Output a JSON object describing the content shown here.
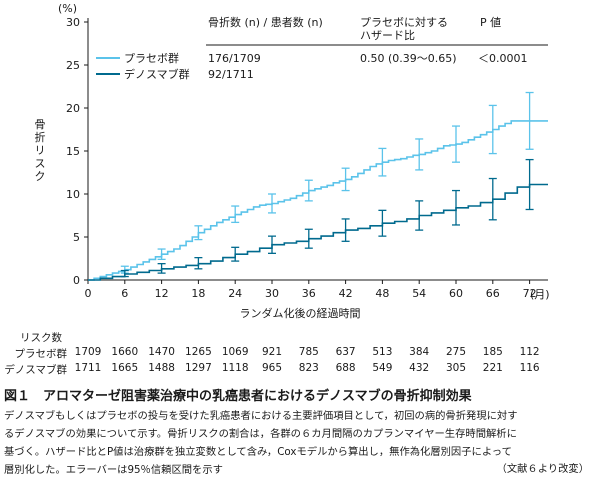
{
  "chart_data": {
    "type": "line",
    "y_unit": "(%)",
    "ylabel": "骨折リスク",
    "xlabel": "ランダム化後の経過時間",
    "x_unit": "(月)",
    "xlim": [
      0,
      75
    ],
    "ylim": [
      0,
      30
    ],
    "x_ticks": [
      0,
      6,
      12,
      18,
      24,
      30,
      36,
      42,
      48,
      54,
      60,
      66,
      72
    ],
    "y_ticks": [
      0,
      5,
      10,
      15,
      20,
      25,
      30
    ],
    "grid": false,
    "table_header": {
      "fractures": "骨折数 (n) / 患者数 (n)",
      "hr": "プラセボに対する\nハザード比",
      "p": "P 値"
    },
    "hr_value": "0.50 (0.39～0.65)",
    "p_value": "＜0.0001",
    "colors": {
      "placebo": "#5bc3ea",
      "denosumab": "#006a8e"
    },
    "series": [
      {
        "name": "プラセボ群",
        "fractures": "176/1709",
        "steps": [
          [
            0,
            0
          ],
          [
            1,
            0.2
          ],
          [
            2,
            0.4
          ],
          [
            3,
            0.6
          ],
          [
            4,
            0.8
          ],
          [
            5,
            1.0
          ],
          [
            6,
            1.2
          ],
          [
            7,
            1.5
          ],
          [
            8,
            1.8
          ],
          [
            9,
            2.1
          ],
          [
            10,
            2.4
          ],
          [
            11,
            2.7
          ],
          [
            12,
            3.0
          ],
          [
            13,
            3.3
          ],
          [
            14,
            3.6
          ],
          [
            15,
            4.0
          ],
          [
            16,
            4.5
          ],
          [
            17,
            5.0
          ],
          [
            18,
            5.5
          ],
          [
            19,
            5.9
          ],
          [
            20,
            6.3
          ],
          [
            21,
            6.7
          ],
          [
            22,
            7.0
          ],
          [
            23,
            7.3
          ],
          [
            24,
            7.6
          ],
          [
            25,
            7.9
          ],
          [
            26,
            8.2
          ],
          [
            27,
            8.5
          ],
          [
            28,
            8.7
          ],
          [
            29,
            8.8
          ],
          [
            30,
            8.9
          ],
          [
            31,
            9.1
          ],
          [
            32,
            9.3
          ],
          [
            33,
            9.5
          ],
          [
            34,
            9.8
          ],
          [
            35,
            10.1
          ],
          [
            36,
            10.4
          ],
          [
            37,
            10.6
          ],
          [
            38,
            10.8
          ],
          [
            39,
            11.0
          ],
          [
            40,
            11.3
          ],
          [
            41,
            11.5
          ],
          [
            42,
            11.7
          ],
          [
            43,
            12.0
          ],
          [
            44,
            12.4
          ],
          [
            45,
            12.8
          ],
          [
            46,
            13.2
          ],
          [
            47,
            13.5
          ],
          [
            48,
            13.7
          ],
          [
            49,
            13.9
          ],
          [
            50,
            14.0
          ],
          [
            51,
            14.1
          ],
          [
            52,
            14.3
          ],
          [
            53,
            14.5
          ],
          [
            54,
            14.6
          ],
          [
            55,
            14.8
          ],
          [
            56,
            15.0
          ],
          [
            57,
            15.3
          ],
          [
            58,
            15.6
          ],
          [
            59,
            15.7
          ],
          [
            60,
            15.8
          ],
          [
            61,
            16.0
          ],
          [
            62,
            16.3
          ],
          [
            63,
            16.6
          ],
          [
            64,
            16.9
          ],
          [
            65,
            17.2
          ],
          [
            66,
            17.5
          ],
          [
            67,
            17.9
          ],
          [
            68,
            18.2
          ],
          [
            69,
            18.5
          ],
          [
            70,
            18.5
          ],
          [
            71,
            18.5
          ],
          [
            72,
            18.5
          ],
          [
            75,
            18.5
          ]
        ],
        "error_bars": [
          {
            "x": 6,
            "y": 1.2,
            "lo": 0.8,
            "hi": 1.6
          },
          {
            "x": 12,
            "y": 3.0,
            "lo": 2.4,
            "hi": 3.6
          },
          {
            "x": 18,
            "y": 5.5,
            "lo": 4.7,
            "hi": 6.3
          },
          {
            "x": 24,
            "y": 7.6,
            "lo": 6.7,
            "hi": 8.6
          },
          {
            "x": 30,
            "y": 8.9,
            "lo": 7.8,
            "hi": 10.0
          },
          {
            "x": 36,
            "y": 10.4,
            "lo": 9.2,
            "hi": 11.6
          },
          {
            "x": 42,
            "y": 11.7,
            "lo": 10.4,
            "hi": 13.0
          },
          {
            "x": 48,
            "y": 13.7,
            "lo": 12.1,
            "hi": 15.3
          },
          {
            "x": 54,
            "y": 14.6,
            "lo": 12.8,
            "hi": 16.4
          },
          {
            "x": 60,
            "y": 15.8,
            "lo": 13.7,
            "hi": 17.9
          },
          {
            "x": 66,
            "y": 17.5,
            "lo": 14.7,
            "hi": 20.3
          },
          {
            "x": 72,
            "y": 18.5,
            "lo": 15.2,
            "hi": 21.8
          }
        ],
        "at_risk": [
          "1709",
          "1660",
          "1470",
          "1265",
          "1069",
          "921",
          "785",
          "637",
          "513",
          "384",
          "275",
          "185",
          "112"
        ]
      },
      {
        "name": "デノスマブ群",
        "fractures": "92/1711",
        "steps": [
          [
            0,
            0
          ],
          [
            2,
            0.2
          ],
          [
            4,
            0.4
          ],
          [
            6,
            0.7
          ],
          [
            8,
            0.9
          ],
          [
            10,
            1.1
          ],
          [
            12,
            1.3
          ],
          [
            14,
            1.5
          ],
          [
            16,
            1.7
          ],
          [
            18,
            1.9
          ],
          [
            20,
            2.2
          ],
          [
            22,
            2.6
          ],
          [
            24,
            3.0
          ],
          [
            26,
            3.3
          ],
          [
            28,
            3.7
          ],
          [
            30,
            4.1
          ],
          [
            32,
            4.3
          ],
          [
            34,
            4.5
          ],
          [
            36,
            4.8
          ],
          [
            38,
            5.1
          ],
          [
            40,
            5.5
          ],
          [
            42,
            5.8
          ],
          [
            44,
            6.0
          ],
          [
            46,
            6.3
          ],
          [
            48,
            6.6
          ],
          [
            50,
            6.8
          ],
          [
            52,
            7.1
          ],
          [
            54,
            7.5
          ],
          [
            56,
            7.8
          ],
          [
            58,
            8.1
          ],
          [
            60,
            8.4
          ],
          [
            62,
            8.6
          ],
          [
            64,
            9.0
          ],
          [
            66,
            9.4
          ],
          [
            68,
            10.1
          ],
          [
            70,
            10.8
          ],
          [
            72,
            11.1
          ],
          [
            75,
            11.1
          ]
        ],
        "error_bars": [
          {
            "x": 6,
            "y": 0.7,
            "lo": 0.4,
            "hi": 1.1
          },
          {
            "x": 12,
            "y": 1.3,
            "lo": 0.8,
            "hi": 1.9
          },
          {
            "x": 18,
            "y": 1.9,
            "lo": 1.3,
            "hi": 2.6
          },
          {
            "x": 24,
            "y": 3.0,
            "lo": 2.2,
            "hi": 3.8
          },
          {
            "x": 30,
            "y": 4.1,
            "lo": 3.1,
            "hi": 5.1
          },
          {
            "x": 36,
            "y": 4.8,
            "lo": 3.7,
            "hi": 5.9
          },
          {
            "x": 42,
            "y": 5.8,
            "lo": 4.5,
            "hi": 7.1
          },
          {
            "x": 48,
            "y": 6.6,
            "lo": 5.1,
            "hi": 8.1
          },
          {
            "x": 54,
            "y": 7.5,
            "lo": 5.8,
            "hi": 9.2
          },
          {
            "x": 60,
            "y": 8.4,
            "lo": 6.4,
            "hi": 10.4
          },
          {
            "x": 66,
            "y": 9.4,
            "lo": 7.0,
            "hi": 11.8
          },
          {
            "x": 72,
            "y": 11.1,
            "lo": 8.2,
            "hi": 14.0
          }
        ],
        "at_risk": [
          "1711",
          "1665",
          "1488",
          "1297",
          "1118",
          "965",
          "823",
          "688",
          "549",
          "432",
          "305",
          "221",
          "116"
        ]
      }
    ]
  },
  "risk_table": {
    "title": "リスク数",
    "rows": [
      "プラセボ群",
      "デノスマブ群"
    ]
  },
  "caption": {
    "title": "図１　アロマターゼ阻害薬治療中の乳癌患者におけるデノスマブの骨折抑制効果",
    "lines": [
      "デノスマブもしくはプラセボの投与を受けた乳癌患者における主要評価項目として，初回の病的骨折発現に対す",
      "るデノスマブの効果について示す。骨折リスクの割合は，各群の６カ月間隔のカプランマイヤー生存時間解析に",
      "基づく。ハザード比とP値は治療群を独立変数として含み，Coxモデルから算出し，無作為化層別因子によって",
      "層別化した。エラーバーは95％信頼区間を示す"
    ],
    "source": "（文献６より改変）"
  }
}
